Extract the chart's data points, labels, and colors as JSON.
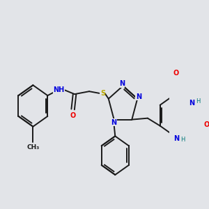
{
  "bg_color": "#e2e4e8",
  "bond_color": "#1a1a1a",
  "bond_width": 1.4,
  "atom_colors": {
    "N": "#0000dd",
    "O": "#ee0000",
    "S": "#bbaa00",
    "H": "#007777",
    "C": "#1a1a1a"
  },
  "font_size_atom": 7.0,
  "font_size_h": 6.0
}
